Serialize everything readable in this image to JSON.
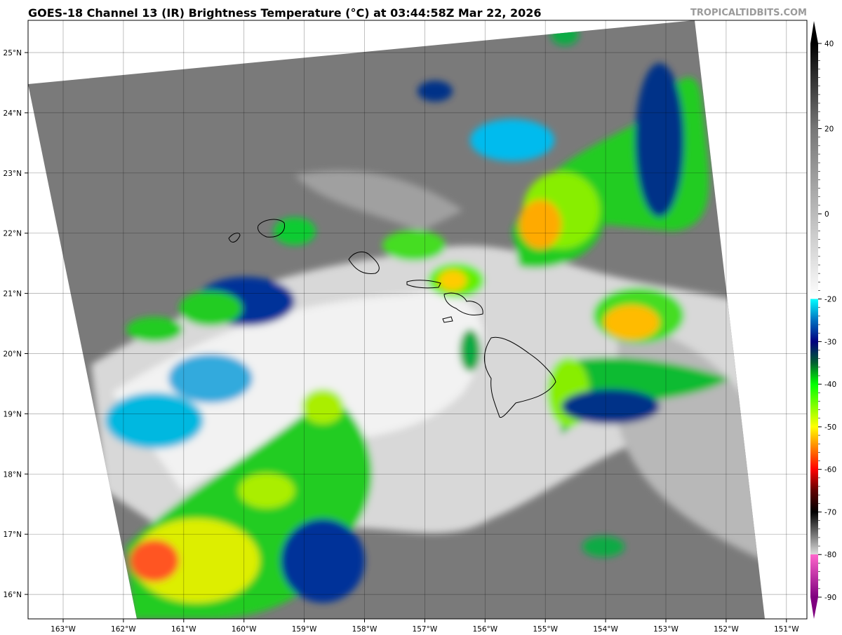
{
  "title": "GOES-18 Channel 13 (IR) Brightness Temperature (°C) at 03:44:58Z Mar 22, 2026",
  "credit": "TROPICALTIDBITS.COM",
  "map": {
    "lon_labels": [
      "163°W",
      "162°W",
      "161°W",
      "160°W",
      "159°W",
      "158°W",
      "157°W",
      "156°W",
      "155°W",
      "154°W",
      "153°W",
      "152°W",
      "151°W"
    ],
    "lat_labels": [
      "25°N",
      "24°N",
      "23°N",
      "22°N",
      "21°N",
      "20°N",
      "19°N",
      "18°N",
      "17°N",
      "16°N"
    ]
  },
  "colorbar": {
    "ticks": [
      "40",
      "20",
      "0",
      "-20",
      "-30",
      "-40",
      "-50",
      "-60",
      "-70",
      "-80",
      "-90"
    ],
    "range": [
      -90,
      40
    ],
    "colors": {
      "warm": "#000000",
      "neutral": "#ffffff",
      "cyan": "#00ffff",
      "blue": "#00007f",
      "green": "#00ff00",
      "yellow": "#ffff00",
      "red": "#ff0000",
      "pink": "#ff66cc",
      "purple": "#7f007f"
    }
  }
}
